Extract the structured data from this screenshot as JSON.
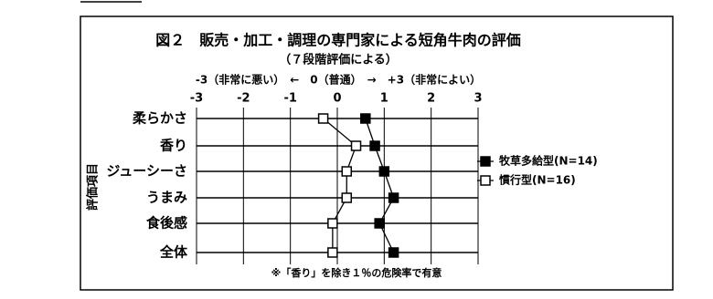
{
  "chart_data": {
    "type": "line",
    "orientation": "horizontal",
    "title": "図２　販売・加工・調理の専門家による短角牛肉の評価",
    "subtitle": "（７段階評価による）",
    "scale_note": "-3（非常に悪い）　←　0（普通）　→　+3（非常によい）",
    "y_label": "評価項目",
    "footnote": "※「香り」を除き１％の危険率で有意",
    "categories": [
      "柔らかさ",
      "香り",
      "ジューシーさ",
      "うまみ",
      "食後感",
      "全体"
    ],
    "series": [
      {
        "name": "牧草多給型(N=14)",
        "color": "#000000",
        "marker": "filled-square",
        "values": [
          0.6,
          0.8,
          1.0,
          1.2,
          0.9,
          1.2
        ]
      },
      {
        "name": "慣行型(N=16)",
        "color": "#000000",
        "marker": "open-square",
        "values": [
          -0.3,
          0.4,
          0.2,
          0.2,
          -0.1,
          -0.1
        ]
      }
    ],
    "xlim": [
      -3,
      3
    ],
    "xticks": [
      -3,
      -2,
      -1,
      0,
      1,
      2,
      3
    ],
    "grid": true
  }
}
